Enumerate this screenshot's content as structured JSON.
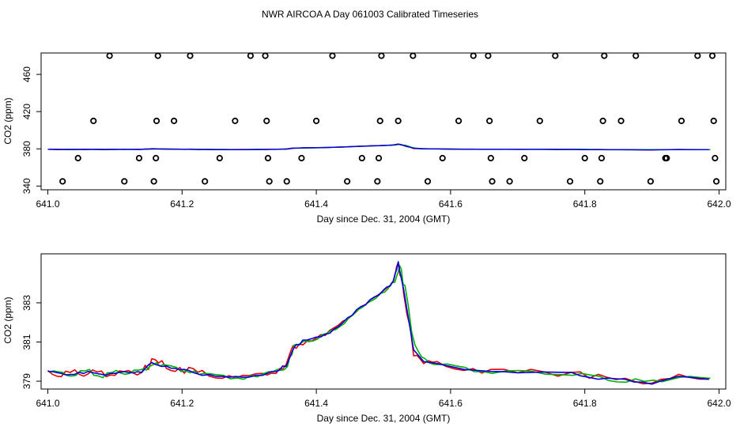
{
  "page_title": "NWR AIRCOA A  Day 061003  Calibrated Timeseries",
  "chart_data": [
    {
      "type": "scatter",
      "title": "",
      "xlabel": "Day since Dec. 31, 2004 (GMT)",
      "ylabel": "CO2 (ppm)",
      "xlim": [
        640.99,
        642.01
      ],
      "ylim": [
        336,
        483
      ],
      "x_ticks": [
        641.0,
        641.2,
        641.4,
        641.6,
        641.8,
        642.0
      ],
      "x_tick_labels": [
        "641.0",
        "641.2",
        "641.4",
        "641.6",
        "641.8",
        "642.0"
      ],
      "y_ticks": [
        340,
        380,
        420,
        460
      ],
      "y_tick_labels": [
        "340",
        "380",
        "420",
        "460"
      ],
      "calibration_points": [
        {
          "x": 641.022,
          "y": 345
        },
        {
          "x": 641.045,
          "y": 370
        },
        {
          "x": 641.068,
          "y": 410
        },
        {
          "x": 641.092,
          "y": 480
        },
        {
          "x": 641.114,
          "y": 345
        },
        {
          "x": 641.136,
          "y": 370
        },
        {
          "x": 641.158,
          "y": 345
        },
        {
          "x": 641.161,
          "y": 370
        },
        {
          "x": 641.162,
          "y": 410
        },
        {
          "x": 641.164,
          "y": 480
        },
        {
          "x": 641.188,
          "y": 410
        },
        {
          "x": 641.212,
          "y": 480
        },
        {
          "x": 641.234,
          "y": 345
        },
        {
          "x": 641.256,
          "y": 370
        },
        {
          "x": 641.279,
          "y": 410
        },
        {
          "x": 641.302,
          "y": 480
        },
        {
          "x": 641.324,
          "y": 480
        },
        {
          "x": 641.326,
          "y": 410
        },
        {
          "x": 641.328,
          "y": 370
        },
        {
          "x": 641.33,
          "y": 345
        },
        {
          "x": 641.356,
          "y": 345
        },
        {
          "x": 641.378,
          "y": 370
        },
        {
          "x": 641.4,
          "y": 410
        },
        {
          "x": 641.424,
          "y": 480
        },
        {
          "x": 641.446,
          "y": 345
        },
        {
          "x": 641.468,
          "y": 370
        },
        {
          "x": 641.491,
          "y": 345
        },
        {
          "x": 641.493,
          "y": 370
        },
        {
          "x": 641.495,
          "y": 410
        },
        {
          "x": 641.497,
          "y": 480
        },
        {
          "x": 641.522,
          "y": 410
        },
        {
          "x": 641.544,
          "y": 480
        },
        {
          "x": 641.566,
          "y": 345
        },
        {
          "x": 641.588,
          "y": 370
        },
        {
          "x": 641.612,
          "y": 410
        },
        {
          "x": 641.634,
          "y": 480
        },
        {
          "x": 641.656,
          "y": 480
        },
        {
          "x": 641.658,
          "y": 410
        },
        {
          "x": 641.66,
          "y": 370
        },
        {
          "x": 641.662,
          "y": 345
        },
        {
          "x": 641.688,
          "y": 345
        },
        {
          "x": 641.71,
          "y": 370
        },
        {
          "x": 641.733,
          "y": 410
        },
        {
          "x": 641.756,
          "y": 480
        },
        {
          "x": 641.778,
          "y": 345
        },
        {
          "x": 641.8,
          "y": 370
        },
        {
          "x": 641.823,
          "y": 345
        },
        {
          "x": 641.825,
          "y": 370
        },
        {
          "x": 641.827,
          "y": 410
        },
        {
          "x": 641.829,
          "y": 480
        },
        {
          "x": 641.854,
          "y": 410
        },
        {
          "x": 641.876,
          "y": 480
        },
        {
          "x": 641.898,
          "y": 345
        },
        {
          "x": 641.92,
          "y": 370
        },
        {
          "x": 641.922,
          "y": 370
        },
        {
          "x": 641.944,
          "y": 410
        },
        {
          "x": 641.968,
          "y": 480
        },
        {
          "x": 641.99,
          "y": 480
        },
        {
          "x": 641.992,
          "y": 410
        },
        {
          "x": 641.994,
          "y": 370
        },
        {
          "x": 641.996,
          "y": 345
        }
      ],
      "series_names": [
        "red",
        "green",
        "blue"
      ],
      "series_colors": [
        "#e00000",
        "#00b000",
        "#0000e0"
      ],
      "note": "Flat lines at about 380 ppm; same data as the lower panel"
    },
    {
      "type": "line",
      "title": "",
      "xlabel": "Day since Dec. 31, 2004 (GMT)",
      "ylabel": "CO2 (ppm)",
      "xlim": [
        640.99,
        642.01
      ],
      "ylim": [
        378.6,
        385.5
      ],
      "x_ticks": [
        641.0,
        641.2,
        641.4,
        641.6,
        641.8,
        642.0
      ],
      "x_tick_labels": [
        "641.0",
        "641.2",
        "641.4",
        "641.6",
        "641.8",
        "642.0"
      ],
      "y_ticks": [
        379,
        381,
        383
      ],
      "y_tick_labels": [
        "379",
        "381",
        "383"
      ],
      "base_x": [
        641.0,
        641.02,
        641.04,
        641.06,
        641.08,
        641.1,
        641.12,
        641.14,
        641.155,
        641.17,
        641.19,
        641.21,
        641.23,
        641.26,
        641.29,
        641.32,
        641.34,
        641.355,
        641.365,
        641.38,
        641.4,
        641.42,
        641.44,
        641.46,
        641.48,
        641.5,
        641.515,
        641.522,
        641.53,
        641.545,
        641.56,
        641.58,
        641.62,
        641.66,
        641.72,
        641.78,
        641.82,
        641.86,
        641.9,
        641.94,
        641.985
      ],
      "base_y": [
        379.5,
        379.35,
        379.4,
        379.45,
        379.3,
        379.45,
        379.45,
        379.5,
        379.95,
        379.8,
        379.6,
        379.55,
        379.35,
        379.2,
        379.2,
        379.35,
        379.5,
        379.8,
        380.7,
        381.0,
        381.2,
        381.5,
        382.0,
        382.6,
        383.1,
        383.6,
        384.1,
        385.0,
        383.7,
        380.6,
        380.0,
        379.9,
        379.6,
        379.5,
        379.45,
        379.4,
        379.15,
        379.05,
        378.9,
        379.25,
        379.1
      ],
      "series": [
        {
          "name": "red",
          "color": "#e00000",
          "x_offset": 0.0,
          "noise": [
            0.05,
            -0.12,
            0.18,
            -0.08,
            0.22,
            -0.15,
            0.1,
            -0.05,
            0.2,
            0.25,
            -0.1,
            0.15,
            0.2,
            -0.05,
            0.1,
            0.05,
            -0.1,
            0.05,
            0.1,
            -0.15,
            0.0,
            0.1,
            0.08,
            -0.05,
            0.05,
            0.02,
            0.0,
            0.05,
            -0.2,
            -0.3,
            -0.1,
            0.1,
            -0.05,
            0.1,
            0.15,
            0.05,
            0.2,
            0.1,
            0.0,
            0.1,
            0.0
          ]
        },
        {
          "name": "green",
          "color": "#00b000",
          "x_offset": 0.002,
          "noise": [
            -0.05,
            0.1,
            -0.1,
            0.15,
            -0.12,
            0.1,
            -0.05,
            0.12,
            -0.1,
            0.05,
            0.1,
            -0.12,
            0.05,
            0.1,
            -0.1,
            0.05,
            0.1,
            -0.05,
            0.15,
            0.05,
            -0.05,
            0.1,
            -0.05,
            0.05,
            0.0,
            -0.05,
            -0.05,
            -0.1,
            0.2,
            0.25,
            0.15,
            -0.05,
            0.1,
            -0.1,
            0.05,
            -0.1,
            0.1,
            -0.1,
            0.15,
            -0.05,
            0.05
          ]
        },
        {
          "name": "blue",
          "color": "#0000e0",
          "x_offset": 0.0,
          "noise": [
            0.0,
            0.05,
            -0.05,
            0.05,
            0.05,
            -0.05,
            0.0,
            -0.05,
            0.0,
            -0.05,
            0.05,
            0.0,
            -0.05,
            0.05,
            0.0,
            -0.05,
            0.0,
            -0.05,
            -0.1,
            0.1,
            0.05,
            -0.05,
            0.0,
            0.05,
            0.05,
            0.05,
            0.05,
            0.1,
            0.0,
            0.0,
            0.0,
            0.0,
            0.0,
            0.0,
            0.0,
            0.05,
            -0.05,
            0.05,
            -0.05,
            0.0,
            0.0
          ]
        }
      ]
    }
  ]
}
